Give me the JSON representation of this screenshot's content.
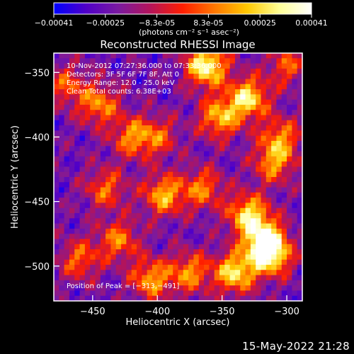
{
  "chart_data": {
    "type": "heatmap",
    "title": "Reconstructed RHESSI Image",
    "xlabel": "Heliocentric X (arcsec)",
    "ylabel": "Heliocentric Y (arcsec)",
    "xlim": [
      -480,
      -288
    ],
    "ylim": [
      -527,
      -335
    ],
    "x_ticks": [
      -450,
      -400,
      -350,
      -300
    ],
    "x_tick_labels": [
      "−450",
      "−400",
      "−350",
      "−300"
    ],
    "y_ticks": [
      -350,
      -400,
      -450,
      -500
    ],
    "y_tick_labels": [
      "−350",
      "−400",
      "−450",
      "−500"
    ],
    "annotations": [
      "10-Nov-2012 07:27:36.000 to 07:33:36.000",
      "Detectors: 3F 5F 6F 7F 8F, Att 0",
      "Energy Range: 12.0 - 25.0 keV",
      "Clean     Total counts: 6.38E+03",
      "Position of Peak = [−313,−491]"
    ],
    "peak": [
      -313,
      -491
    ],
    "colorbar": {
      "min": -0.00041,
      "max": 0.00041,
      "tick_labels": [
        "−0.00041",
        "−0.00025",
        "−8.3e-05",
        "8.3e-05",
        "0.00025",
        "0.00041"
      ],
      "units_label": "(photons cm⁻² s⁻¹ asec⁻²)",
      "colors": [
        "#0000ff",
        "#5000c8",
        "#7a1aa0",
        "#b4145a",
        "#ff1e00",
        "#ff7800",
        "#ffc800",
        "#ffff96",
        "#ffffff"
      ]
    },
    "hotspots": [
      {
        "x": -362,
        "y": -345,
        "strength": 1.0
      },
      {
        "x": -330,
        "y": -370,
        "strength": 0.85
      },
      {
        "x": -352,
        "y": -385,
        "strength": 0.7
      },
      {
        "x": -445,
        "y": -375,
        "strength": 0.6
      },
      {
        "x": -420,
        "y": -400,
        "strength": 0.55
      },
      {
        "x": -400,
        "y": -400,
        "strength": 0.45
      },
      {
        "x": -305,
        "y": -400,
        "strength": 0.55
      },
      {
        "x": -310,
        "y": -420,
        "strength": 0.6
      },
      {
        "x": -440,
        "y": -440,
        "strength": 0.5
      },
      {
        "x": -395,
        "y": -445,
        "strength": 0.7
      },
      {
        "x": -365,
        "y": -440,
        "strength": 0.55
      },
      {
        "x": -330,
        "y": -460,
        "strength": 0.8
      },
      {
        "x": -318,
        "y": -478,
        "strength": 0.75
      },
      {
        "x": -430,
        "y": -480,
        "strength": 0.55
      },
      {
        "x": -405,
        "y": -510,
        "strength": 0.65
      },
      {
        "x": -460,
        "y": -495,
        "strength": 0.5
      },
      {
        "x": -313,
        "y": -491,
        "strength": 1.0
      },
      {
        "x": -340,
        "y": -505,
        "strength": 0.85
      },
      {
        "x": -375,
        "y": -505,
        "strength": 0.6
      },
      {
        "x": -300,
        "y": -345,
        "strength": 0.45
      },
      {
        "x": -470,
        "y": -360,
        "strength": 0.45
      }
    ],
    "grid": false
  },
  "footer": {
    "timestamp": "15-May-2022 21:28"
  }
}
